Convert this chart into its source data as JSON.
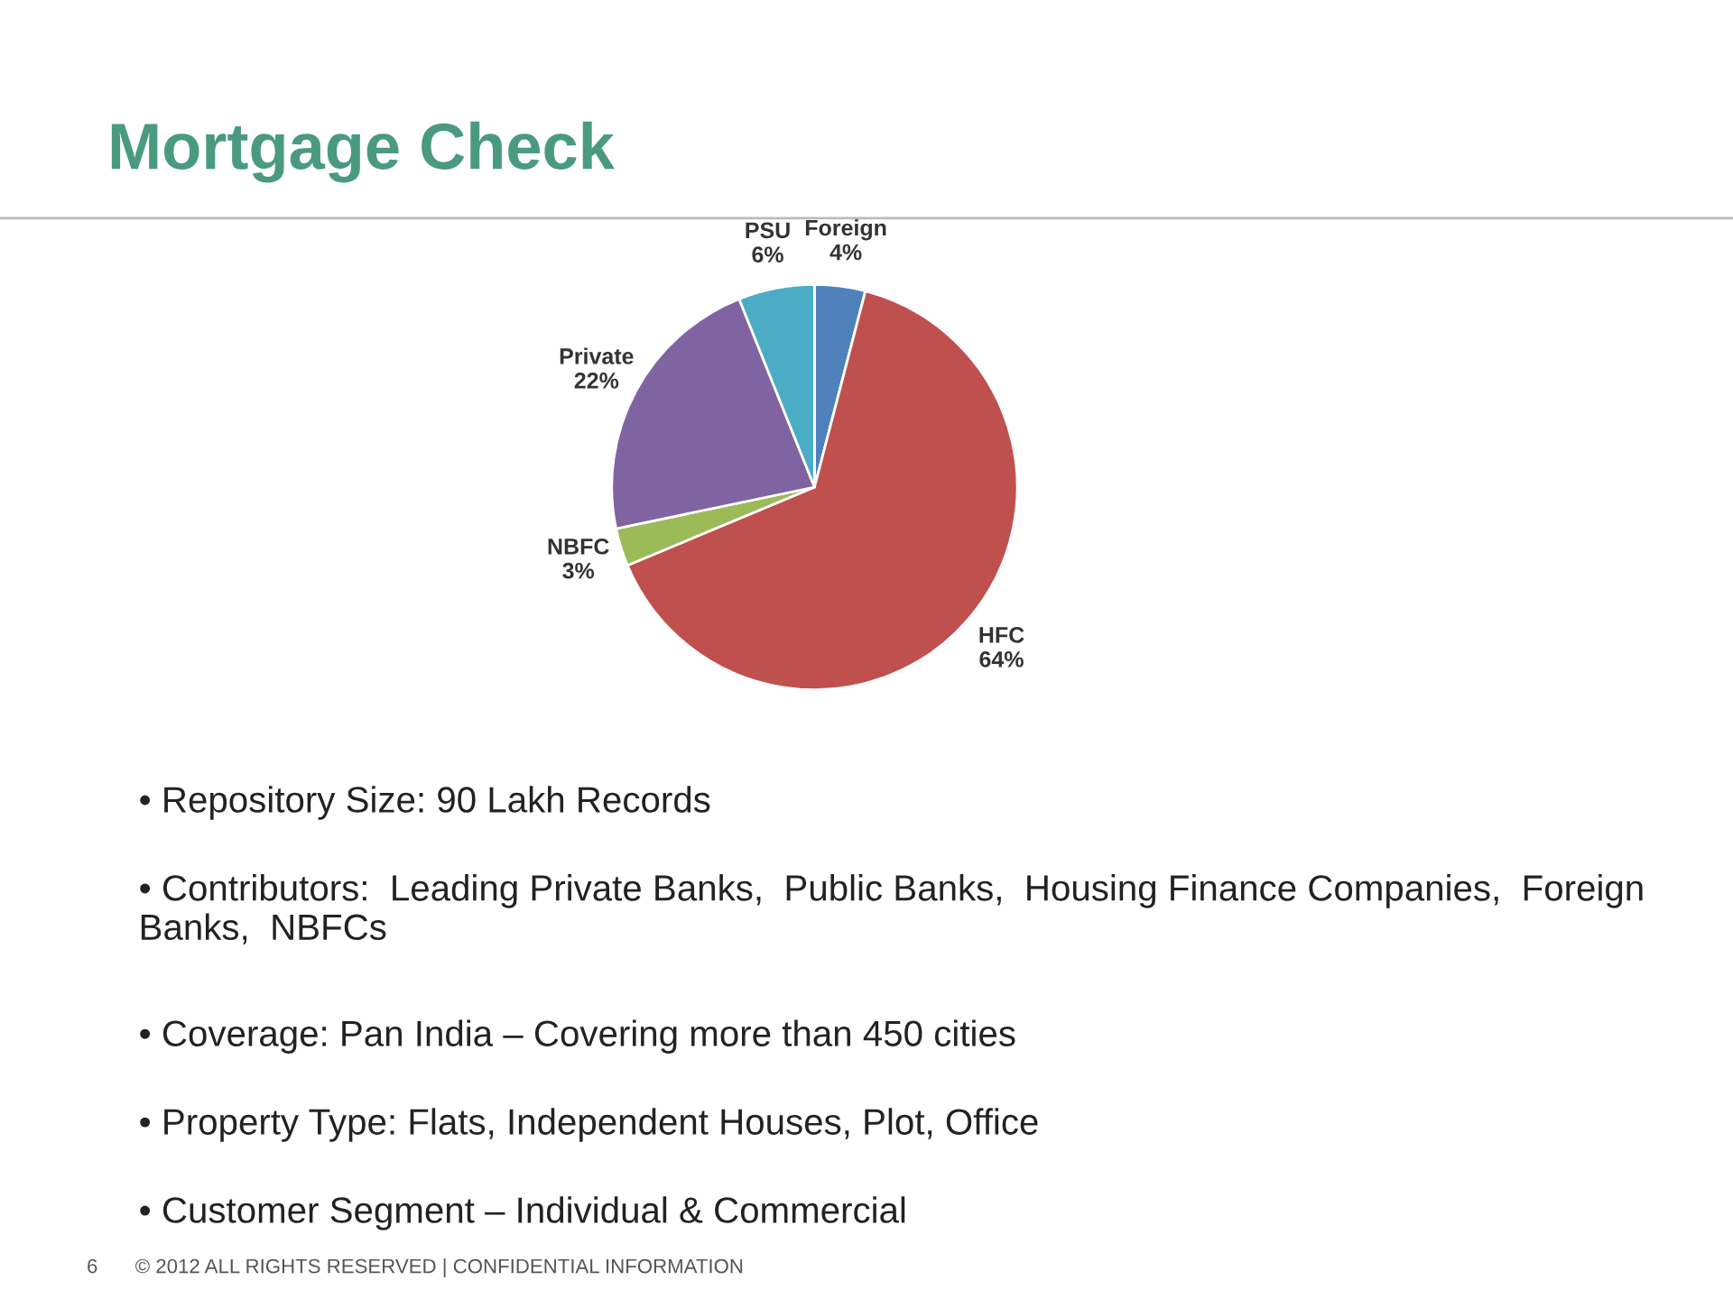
{
  "chart_data": {
    "type": "pie",
    "title": "Mortgage Check",
    "categories": [
      "Foreign",
      "HFC",
      "NBFC",
      "Private",
      "PSU"
    ],
    "values": [
      4,
      64,
      3,
      22,
      6
    ],
    "value_labels": [
      "4%",
      "64%",
      "3%",
      "22%",
      "6%"
    ],
    "colors": [
      "#4f81bd",
      "#c0504d",
      "#9bbb59",
      "#8064a2",
      "#4bacc6"
    ],
    "annotations": [
      "• Repository Size: 90 Lakh Records",
      "• Contributors:  Leading Private Banks,  Public Banks,  Housing Finance Companies,  Foreign Banks,  NBFCs",
      "• Coverage: Pan India – Covering more than 450 cities",
      "• Property Type: Flats, Independent Houses, Plot, Office",
      "• Customer Segment – Individual & Commercial",
      "6",
      "© 2012 ALL RIGHTS RESERVED | CONFIDENTIAL INFORMATION"
    ]
  }
}
